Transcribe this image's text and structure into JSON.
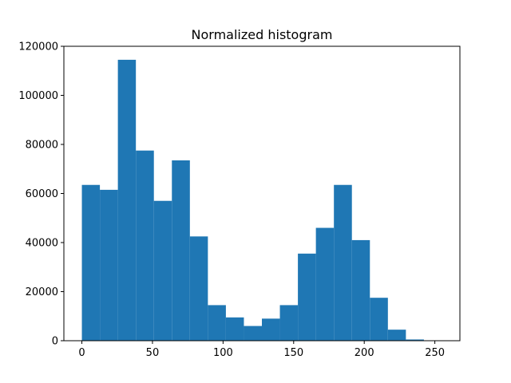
{
  "chart_data": {
    "type": "bar",
    "title": "Normalized histogram",
    "xlabel": "",
    "ylabel": "",
    "bar_color": "#1f77b4",
    "xlim": [
      -12.75,
      267.75
    ],
    "ylim": [
      0,
      120000
    ],
    "x_ticks": [
      0,
      50,
      100,
      150,
      200,
      250
    ],
    "y_ticks": [
      0,
      20000,
      40000,
      60000,
      80000,
      100000,
      120000
    ],
    "bin_width": 12.75,
    "bins_start": [
      0,
      12.75,
      25.5,
      38.25,
      51,
      63.75,
      76.5,
      89.25,
      102,
      114.75,
      127.5,
      140.25,
      153,
      165.75,
      178.5,
      191.25,
      204,
      216.75,
      229.5,
      242.25
    ],
    "values": [
      63500,
      61500,
      114500,
      77500,
      57000,
      73500,
      42500,
      14500,
      9500,
      6000,
      9000,
      14500,
      35500,
      46000,
      63500,
      41000,
      17500,
      4500,
      500,
      0
    ],
    "grid": false,
    "legend": "none"
  }
}
